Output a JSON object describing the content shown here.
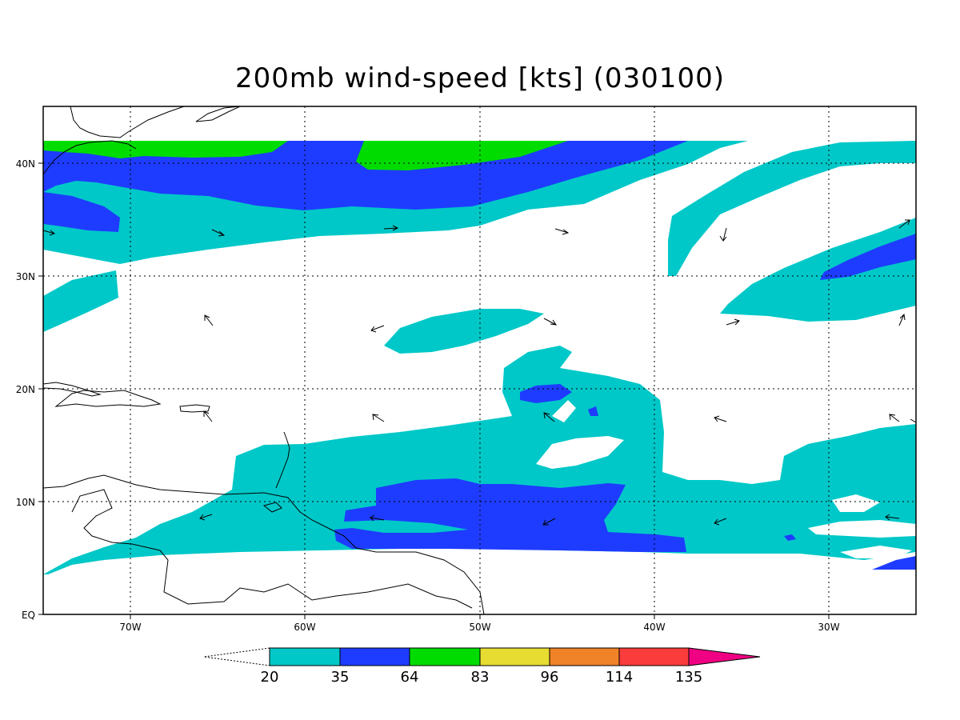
{
  "title": "200mb wind-speed [kts] (030100)",
  "axes": {
    "lat_labels": [
      "EQ",
      "10N",
      "20N",
      "30N",
      "40N"
    ],
    "lon_labels": [
      "70W",
      "60W",
      "50W",
      "40W",
      "30W"
    ]
  },
  "colorbar": {
    "labels": [
      "20",
      "35",
      "64",
      "83",
      "96",
      "114",
      "135"
    ],
    "colors": [
      "#00c8c8",
      "#1e3cff",
      "#00dc00",
      "#e6dc32",
      "#f08228",
      "#fa3c3c",
      "#f00082"
    ]
  },
  "shading_colors": {
    "cyan": "#00c8c8",
    "blue": "#1e3cff",
    "green": "#00dc00"
  }
}
